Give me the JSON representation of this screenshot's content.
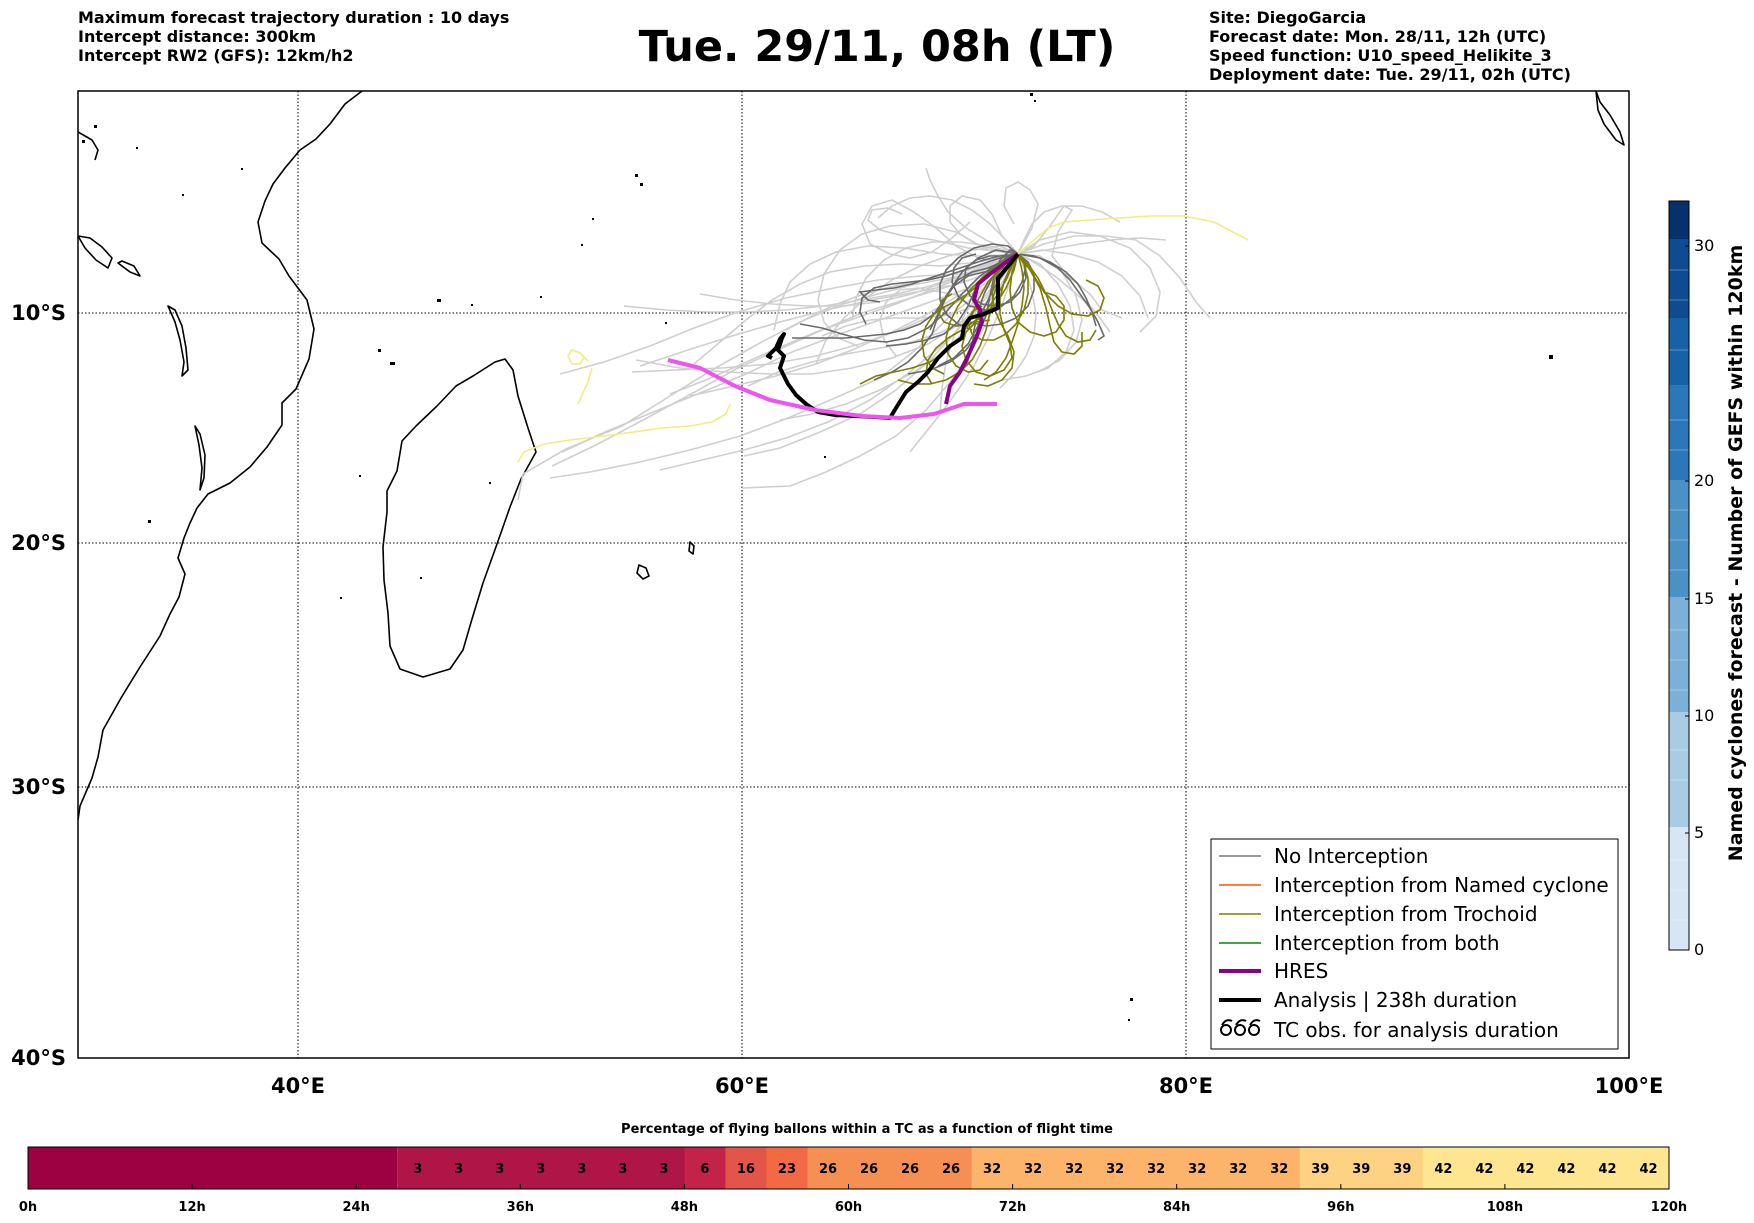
{
  "header": {
    "left": [
      "Maximum forecast trajectory duration : 10 days",
      "Intercept distance: 300km",
      "Intercept RW2 (GFS):  12km/h2"
    ],
    "title": "Tue. 29/11, 08h (LT)",
    "right": [
      "Site: DiegoGarcia",
      "Forecast date: Mon. 28/11, 12h (UTC)",
      "Speed function: U10_speed_Helikite_3",
      "Deployment date: Tue. 29/11, 02h (UTC)"
    ]
  },
  "map": {
    "lon_ticks": [
      "40°E",
      "60°E",
      "80°E",
      "100°E"
    ],
    "lat_ticks": [
      "10°S",
      "20°S",
      "30°S",
      "40°S"
    ],
    "legend": [
      {
        "label": "No Interception",
        "color": "#777777"
      },
      {
        "label": "Interception from Named cyclone",
        "color": "#ff5500"
      },
      {
        "label": "Interception from Trochoid",
        "color": "#808000"
      },
      {
        "label": "Interception from both",
        "color": "#008800"
      },
      {
        "label": "HRES",
        "color": "#8b008b"
      },
      {
        "label": "Analysis | 238h duration",
        "color": "#000000"
      },
      {
        "label": "TC obs. for analysis duration",
        "icon": "cyclone-symbol"
      }
    ]
  },
  "colorbar": {
    "label": "Named cyclones forecast - Number of GEFS within 120km",
    "ticks": [
      "0",
      "5",
      "10",
      "15",
      "20",
      "30"
    ]
  },
  "timebar": {
    "title": "Percentage of flying ballons within a TC as a function of flight time",
    "values": [
      "3",
      "3",
      "3",
      "3",
      "3",
      "3",
      "3",
      "6",
      "16",
      "23",
      "26",
      "26",
      "26",
      "26",
      "32",
      "32",
      "32",
      "32",
      "32",
      "32",
      "32",
      "32",
      "39",
      "39",
      "39",
      "42",
      "42",
      "42",
      "42",
      "42",
      "42"
    ],
    "ticks": [
      "0h",
      "12h",
      "24h",
      "36h",
      "48h",
      "60h",
      "72h",
      "84h",
      "96h",
      "108h",
      "120h"
    ]
  }
}
